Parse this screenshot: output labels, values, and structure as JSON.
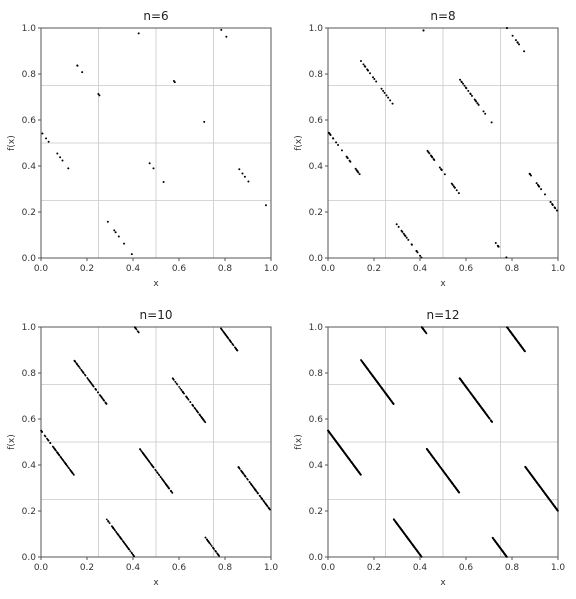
{
  "chart_data": [
    {
      "type": "scatter",
      "title": "n=6",
      "xlabel": "x",
      "ylabel": "f(x)",
      "xlim": [
        0.0,
        1.0
      ],
      "ylim": [
        0.0,
        1.0
      ],
      "xticks": [
        "0.0",
        "0.2",
        "0.4",
        "0.6",
        "0.8",
        "1.0"
      ],
      "yticks": [
        "0.0",
        "0.2",
        "0.4",
        "0.6",
        "0.8",
        "1.0"
      ],
      "grid": true,
      "n": 6
    },
    {
      "type": "scatter",
      "title": "n=8",
      "xlabel": "x",
      "ylabel": "f(x)",
      "xlim": [
        0.0,
        1.0
      ],
      "ylim": [
        0.0,
        1.0
      ],
      "xticks": [
        "0.0",
        "0.2",
        "0.4",
        "0.6",
        "0.8",
        "1.0"
      ],
      "yticks": [
        "0.0",
        "0.2",
        "0.4",
        "0.6",
        "0.8",
        "1.0"
      ],
      "grid": true,
      "n": 8
    },
    {
      "type": "scatter",
      "title": "n=10",
      "xlabel": "x",
      "ylabel": "f(x)",
      "xlim": [
        0.0,
        1.0
      ],
      "ylim": [
        0.0,
        1.0
      ],
      "xticks": [
        "0.0",
        "0.2",
        "0.4",
        "0.6",
        "0.8",
        "1.0"
      ],
      "yticks": [
        "0.0",
        "0.2",
        "0.4",
        "0.6",
        "0.8",
        "1.0"
      ],
      "grid": true,
      "n": 10
    },
    {
      "type": "scatter",
      "title": "n=12",
      "xlabel": "x",
      "ylabel": "f(x)",
      "xlim": [
        0.0,
        1.0
      ],
      "ylim": [
        0.0,
        1.0
      ],
      "xticks": [
        "0.0",
        "0.2",
        "0.4",
        "0.6",
        "0.8",
        "1.0"
      ],
      "yticks": [
        "0.0",
        "0.2",
        "0.4",
        "0.6",
        "0.8",
        "1.0"
      ],
      "grid": true,
      "n": 12
    }
  ]
}
